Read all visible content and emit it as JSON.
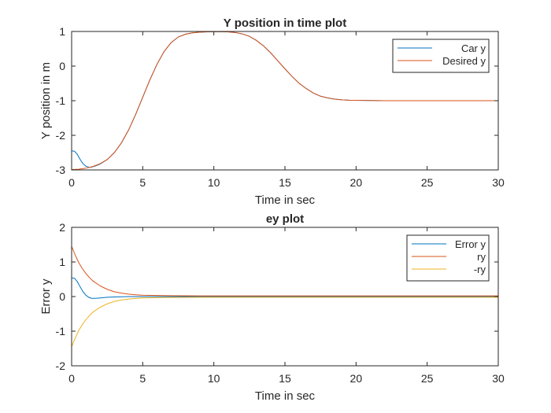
{
  "chart_data": [
    {
      "type": "line",
      "title": "Y position in time plot",
      "xlabel": "Time in sec",
      "ylabel": "Y position in m",
      "xlim": [
        0,
        30
      ],
      "ylim": [
        -3,
        1
      ],
      "xticks": [
        0,
        5,
        10,
        15,
        20,
        25,
        30
      ],
      "yticks": [
        -3,
        -2,
        -1,
        0,
        1
      ],
      "grid": false,
      "legend": "top-right",
      "series": [
        {
          "name": "Car y",
          "color": "#0072BD",
          "x": [
            0,
            0.2,
            0.4,
            0.6,
            0.8,
            1.0,
            1.2,
            1.4,
            1.7,
            2.0,
            2.5,
            3.0,
            3.5,
            4.0,
            4.5,
            5.0,
            5.5,
            6.0,
            6.5,
            7.0,
            7.5,
            8.0,
            8.5,
            9.0,
            9.5,
            10.0,
            10.5,
            11.0,
            11.5,
            12.0,
            12.5,
            13.0,
            13.5,
            14.0,
            14.5,
            15.0,
            15.5,
            16.0,
            16.5,
            17.0,
            17.5,
            18.0,
            18.5,
            19.0,
            19.5,
            20.0,
            21.0,
            22.0,
            24.0,
            26.0,
            28.0,
            30.0
          ],
          "y": [
            -2.45,
            -2.46,
            -2.55,
            -2.7,
            -2.82,
            -2.89,
            -2.92,
            -2.92,
            -2.88,
            -2.83,
            -2.7,
            -2.5,
            -2.22,
            -1.85,
            -1.4,
            -0.9,
            -0.4,
            0.05,
            0.42,
            0.68,
            0.84,
            0.92,
            0.96,
            0.98,
            0.99,
            0.995,
            0.995,
            0.99,
            0.97,
            0.93,
            0.86,
            0.74,
            0.58,
            0.38,
            0.15,
            -0.08,
            -0.3,
            -0.5,
            -0.65,
            -0.78,
            -0.87,
            -0.92,
            -0.955,
            -0.975,
            -0.985,
            -0.99,
            -0.995,
            -1.0,
            -1.0,
            -1.0,
            -1.0,
            -1.0
          ]
        },
        {
          "name": "Desired y",
          "color": "#D95319",
          "x": [
            0,
            0.5,
            1.0,
            1.5,
            2.0,
            2.5,
            3.0,
            3.5,
            4.0,
            4.5,
            5.0,
            5.5,
            6.0,
            6.5,
            7.0,
            7.5,
            8.0,
            8.5,
            9.0,
            9.5,
            10.0,
            10.5,
            11.0,
            11.5,
            12.0,
            12.5,
            13.0,
            13.5,
            14.0,
            14.5,
            15.0,
            15.5,
            16.0,
            16.5,
            17.0,
            17.5,
            18.0,
            18.5,
            19.0,
            19.5,
            20.0,
            21.0,
            22.0,
            24.0,
            26.0,
            28.0,
            30.0
          ],
          "y": [
            -2.99,
            -2.98,
            -2.95,
            -2.9,
            -2.82,
            -2.7,
            -2.5,
            -2.22,
            -1.85,
            -1.4,
            -0.9,
            -0.4,
            0.05,
            0.42,
            0.68,
            0.84,
            0.92,
            0.96,
            0.98,
            0.99,
            0.995,
            0.995,
            0.99,
            0.97,
            0.93,
            0.86,
            0.74,
            0.58,
            0.38,
            0.15,
            -0.08,
            -0.3,
            -0.5,
            -0.65,
            -0.78,
            -0.87,
            -0.92,
            -0.955,
            -0.975,
            -0.985,
            -0.99,
            -0.995,
            -1.0,
            -1.0,
            -1.0,
            -1.0,
            -1.0
          ]
        }
      ]
    },
    {
      "type": "line",
      "title": "ey plot",
      "xlabel": "Time in sec",
      "ylabel": "Error y",
      "xlim": [
        0,
        30
      ],
      "ylim": [
        -2,
        2
      ],
      "xticks": [
        0,
        5,
        10,
        15,
        20,
        25,
        30
      ],
      "yticks": [
        -2,
        -1,
        0,
        1,
        2
      ],
      "grid": false,
      "legend": "top-right",
      "series": [
        {
          "name": "Error y",
          "color": "#0072BD",
          "x": [
            0,
            0.2,
            0.4,
            0.6,
            0.8,
            1.0,
            1.2,
            1.4,
            1.7,
            2.0,
            2.5,
            3.0,
            4.0,
            5.0,
            30.0
          ],
          "y": [
            0.54,
            0.53,
            0.43,
            0.28,
            0.14,
            0.04,
            -0.02,
            -0.05,
            -0.05,
            -0.04,
            -0.02,
            -0.01,
            0.0,
            0.0,
            0.0
          ]
        },
        {
          "name": "ry",
          "color": "#D95319",
          "x": [
            0,
            0.25,
            0.5,
            0.75,
            1.0,
            1.25,
            1.5,
            2.0,
            2.5,
            3.0,
            3.5,
            4.0,
            4.5,
            5.0,
            6.0,
            7.0,
            8.0,
            10.0,
            30.0
          ],
          "y": [
            1.45,
            1.2,
            0.98,
            0.81,
            0.67,
            0.55,
            0.45,
            0.31,
            0.21,
            0.14,
            0.1,
            0.07,
            0.05,
            0.04,
            0.03,
            0.025,
            0.022,
            0.02,
            0.02
          ],
          "mirror": false
        },
        {
          "name": "-ry",
          "color": "#EDB120",
          "x": [
            0,
            0.25,
            0.5,
            0.75,
            1.0,
            1.25,
            1.5,
            2.0,
            2.5,
            3.0,
            3.5,
            4.0,
            4.5,
            5.0,
            6.0,
            7.0,
            8.0,
            10.0,
            30.0
          ],
          "y": [
            -1.45,
            -1.2,
            -0.98,
            -0.81,
            -0.67,
            -0.55,
            -0.45,
            -0.31,
            -0.21,
            -0.14,
            -0.1,
            -0.07,
            -0.05,
            -0.04,
            -0.03,
            -0.025,
            -0.022,
            -0.02,
            -0.02
          ]
        }
      ]
    }
  ]
}
